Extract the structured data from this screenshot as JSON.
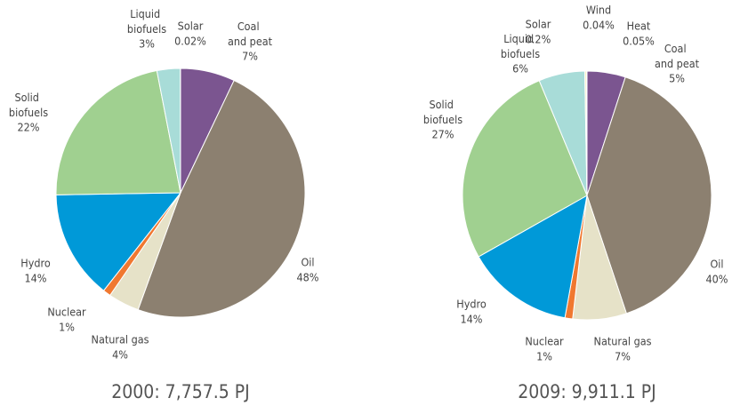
{
  "chart_data": [
    {
      "type": "pie",
      "title": "2000: 7,757.5 PJ",
      "categories": [
        "Coal and peat",
        "Oil",
        "Natural gas",
        "Nuclear",
        "Hydro",
        "Solid biofuels",
        "Liquid biofuels",
        "Solar"
      ],
      "values": [
        7,
        48,
        4,
        1,
        14,
        22,
        3,
        0.02
      ],
      "value_labels": [
        "7%",
        "48%",
        "4%",
        "1%",
        "14%",
        "22%",
        "3%",
        "0.02%"
      ],
      "colors": [
        "#7b5590",
        "#8c8070",
        "#e6e2c8",
        "#f07830",
        "#0099d8",
        "#a0d090",
        "#a8dcd8",
        "#f0e8a0"
      ]
    },
    {
      "type": "pie",
      "title": "2009: 9,911.1 PJ",
      "categories": [
        "Coal and peat",
        "Oil",
        "Natural gas",
        "Nuclear",
        "Hydro",
        "Solid biofuels",
        "Liquid biofuels",
        "Solar",
        "Wind",
        "Heat"
      ],
      "values": [
        5,
        40,
        7,
        1,
        14,
        27,
        6,
        0.2,
        0.04,
        0.05
      ],
      "value_labels": [
        "5%",
        "40%",
        "7%",
        "1%",
        "14%",
        "27%",
        "6%",
        "0.2%",
        "0.04%",
        "0.05%"
      ],
      "colors": [
        "#7b5590",
        "#8c8070",
        "#e6e2c8",
        "#f07830",
        "#0099d8",
        "#a0d090",
        "#a8dcd8",
        "#f0e8a0",
        "#c8b89a",
        "#d84040"
      ]
    }
  ]
}
